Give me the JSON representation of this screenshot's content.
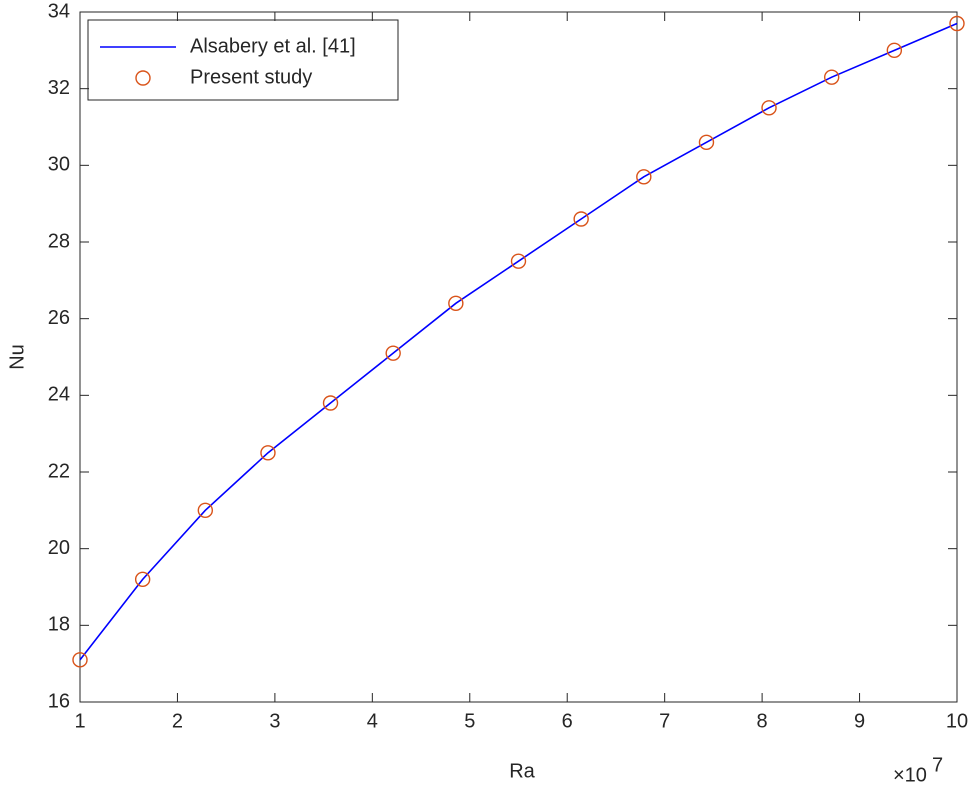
{
  "chart_data": {
    "type": "line",
    "x_label": "Ra",
    "y_label": "Nu",
    "x_multiplier_base": "×10",
    "x_multiplier_exponent": "7",
    "x": [
      1,
      1.643,
      2.286,
      2.929,
      3.571,
      4.214,
      4.857,
      5.5,
      6.143,
      6.786,
      7.429,
      8.071,
      8.714,
      9.357,
      10
    ],
    "series": [
      {
        "name": "Alsabery et al. [41]",
        "color": "#0000ff",
        "mode": "line",
        "values": [
          17.1,
          19.2,
          21.0,
          22.5,
          23.8,
          25.1,
          26.4,
          27.5,
          28.6,
          29.7,
          30.6,
          31.5,
          32.3,
          33.0,
          33.7
        ]
      },
      {
        "name": "Present study",
        "color": "#d95319",
        "mode": "markers",
        "values": [
          17.1,
          19.2,
          21.0,
          22.5,
          23.8,
          25.1,
          26.4,
          27.5,
          28.6,
          29.7,
          30.6,
          31.5,
          32.3,
          33.0,
          33.7
        ]
      }
    ],
    "xlim": [
      1,
      10
    ],
    "ylim": [
      16,
      34
    ],
    "xticks": [
      1,
      2,
      3,
      4,
      5,
      6,
      7,
      8,
      9,
      10
    ],
    "yticks": [
      16,
      18,
      20,
      22,
      24,
      26,
      28,
      30,
      32,
      34
    ],
    "legend": "upper left"
  }
}
